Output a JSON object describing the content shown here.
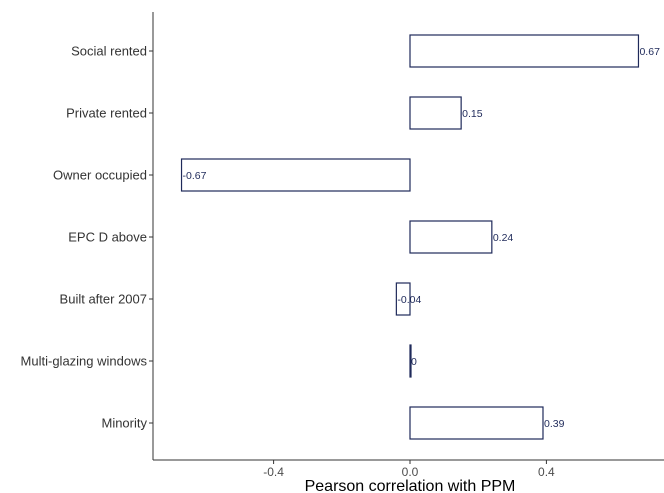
{
  "chart_data": {
    "type": "bar",
    "orientation": "horizontal",
    "categories": [
      "Social rented",
      "Private rented",
      "Owner occupied",
      "EPC D above",
      "Built after 2007",
      "Multi-glazing windows",
      "Minority"
    ],
    "values": [
      0.67,
      0.15,
      -0.67,
      0.24,
      -0.04,
      0,
      0.39
    ],
    "value_labels": [
      "0.67",
      "0.15",
      "-0.67",
      "0.24",
      "-0.04",
      "0",
      "0.39"
    ],
    "title": "",
    "xlabel": "Pearson correlation with PPM",
    "ylabel": "",
    "xlim": [
      -0.74,
      0.74
    ],
    "xticks": [
      -0.4,
      0.0,
      0.4
    ],
    "xtick_labels": [
      "-0.4",
      "0.0",
      "0.4"
    ],
    "grid": false,
    "bar_fill": "#ffffff",
    "bar_stroke": "#1f2a5a"
  }
}
